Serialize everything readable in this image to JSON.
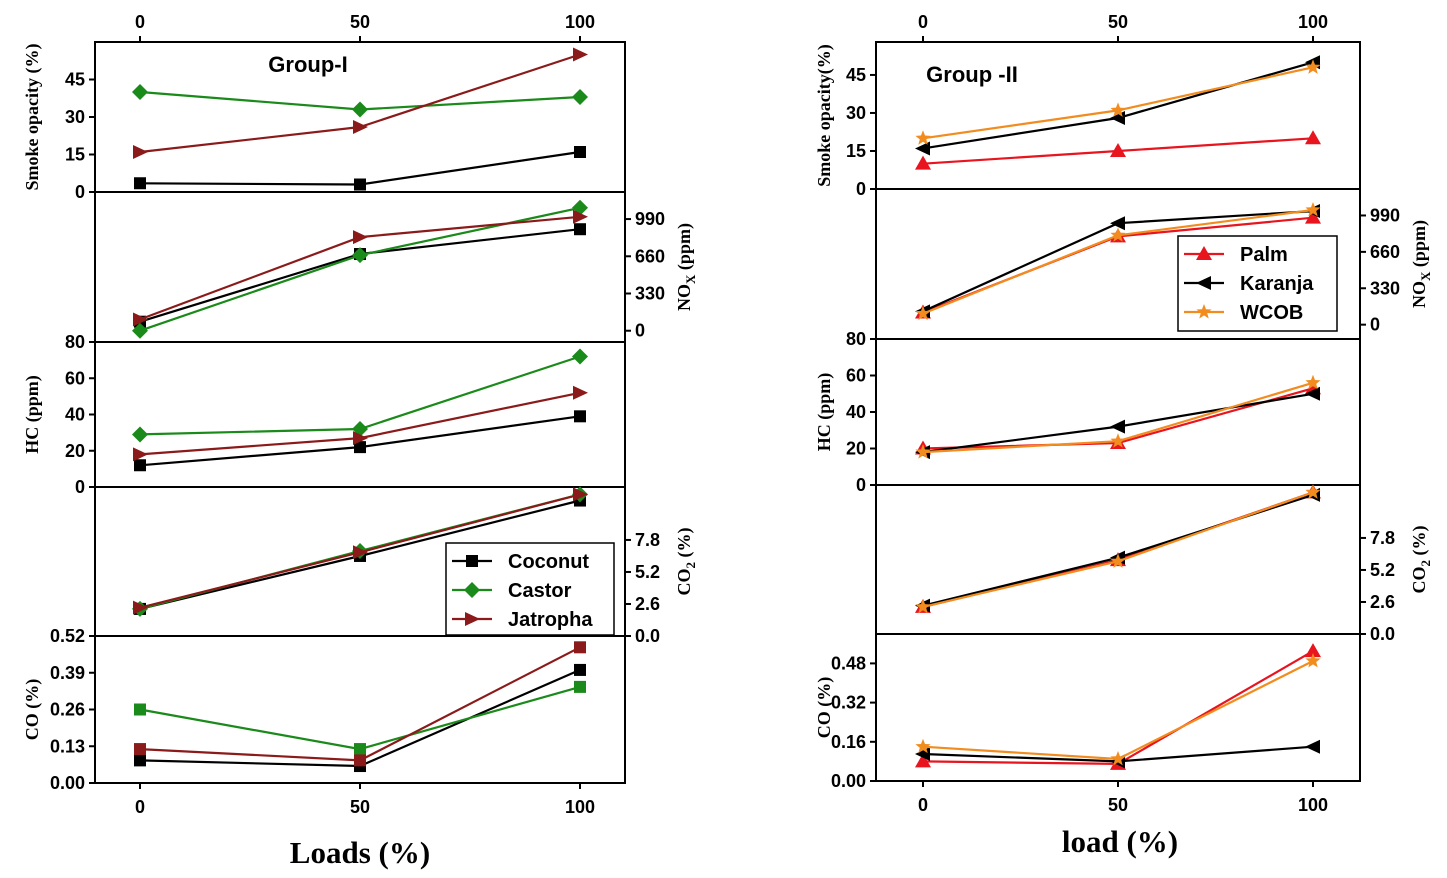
{
  "chart_data": [
    {
      "type": "line",
      "group_label": "Group-I",
      "xlabel": "Loads (%)",
      "x": [
        0,
        50,
        100
      ],
      "x_ticks": [
        "0",
        "50",
        "100"
      ],
      "colors": {
        "Coconut": "#000000",
        "Castor": "#1a8a1a",
        "Jatropha": "#8b1a1a"
      },
      "legend": [
        "Coconut",
        "Castor",
        "Jatropha"
      ],
      "panels": [
        {
          "key": "smoke",
          "ylabel": "Smoke opacity (%)",
          "ylim": [
            0,
            60
          ],
          "ticks": [
            "0",
            "15",
            "30",
            "45"
          ],
          "tick_side": "left",
          "series": [
            {
              "name": "Coconut",
              "marker": "square",
              "values": [
                3.5,
                3,
                16
              ]
            },
            {
              "name": "Castor",
              "marker": "diamond",
              "values": [
                40,
                33,
                38
              ]
            },
            {
              "name": "Jatropha",
              "marker": "tri-right",
              "values": [
                16,
                26,
                55
              ]
            }
          ]
        },
        {
          "key": "nox",
          "ylabel": "NO",
          "ylabel_sub": "X",
          "ylabel_tail": " (ppm)",
          "ylim": [
            -100,
            1230
          ],
          "ticks": [
            "0",
            "330",
            "660",
            "990"
          ],
          "tick_side": "right",
          "series": [
            {
              "name": "Coconut",
              "marker": "square",
              "values": [
                80,
                680,
                900
              ]
            },
            {
              "name": "Castor",
              "marker": "diamond",
              "values": [
                0,
                670,
                1090
              ]
            },
            {
              "name": "Jatropha",
              "marker": "tri-right",
              "values": [
                100,
                830,
                1010
              ]
            }
          ]
        },
        {
          "key": "hc",
          "ylabel": "HC (ppm)",
          "ylim": [
            0,
            80
          ],
          "ticks": [
            "0",
            "20",
            "40",
            "60",
            "80"
          ],
          "tick_side": "left",
          "series": [
            {
              "name": "Coconut",
              "marker": "square",
              "values": [
                12,
                22,
                39
              ]
            },
            {
              "name": "Castor",
              "marker": "diamond",
              "values": [
                29,
                32,
                72
              ]
            },
            {
              "name": "Jatropha",
              "marker": "tri-right",
              "values": [
                18,
                27,
                52
              ]
            }
          ]
        },
        {
          "key": "co2",
          "ylabel": "CO",
          "ylabel_sub": "2",
          "ylabel_tail": " (%)",
          "ylim": [
            0,
            12.1
          ],
          "ticks": [
            "0.0",
            "2.6",
            "5.2",
            "7.8"
          ],
          "tick_side": "right",
          "series": [
            {
              "name": "Coconut",
              "marker": "square",
              "values": [
                2.2,
                6.5,
                11.0
              ]
            },
            {
              "name": "Castor",
              "marker": "diamond",
              "values": [
                2.2,
                6.9,
                11.5
              ]
            },
            {
              "name": "Jatropha",
              "marker": "tri-right",
              "values": [
                2.3,
                6.8,
                11.5
              ]
            }
          ]
        },
        {
          "key": "co",
          "ylabel": "CO (%)",
          "ylim": [
            0,
            0.52
          ],
          "ticks": [
            "0.00",
            "0.13",
            "0.26",
            "0.39",
            "0.52"
          ],
          "tick_side": "left",
          "series": [
            {
              "name": "Coconut",
              "marker": "square",
              "values": [
                0.08,
                0.06,
                0.4
              ]
            },
            {
              "name": "Castor",
              "marker": "square",
              "values": [
                0.26,
                0.12,
                0.34
              ]
            },
            {
              "name": "Jatropha",
              "marker": "square",
              "values": [
                0.12,
                0.08,
                0.48
              ]
            }
          ]
        }
      ]
    },
    {
      "type": "line",
      "group_label": "Group -II",
      "xlabel": "load (%)",
      "x": [
        0,
        50,
        100
      ],
      "x_ticks": [
        "0",
        "50",
        "100"
      ],
      "colors": {
        "Palm": "#e8141e",
        "Karanja": "#000000",
        "WCOB": "#f28c1e"
      },
      "legend": [
        "Palm",
        "Karanja",
        "WCOB"
      ],
      "panels": [
        {
          "key": "smoke",
          "ylabel": "Smoke opacity(%)",
          "ylim": [
            0,
            58
          ],
          "ticks": [
            "0",
            "15",
            "30",
            "45"
          ],
          "tick_side": "left",
          "series": [
            {
              "name": "Palm",
              "marker": "tri-up",
              "values": [
                10,
                15,
                20
              ]
            },
            {
              "name": "Karanja",
              "marker": "tri-left",
              "values": [
                16,
                28,
                50
              ]
            },
            {
              "name": "WCOB",
              "marker": "star",
              "values": [
                20,
                31,
                48
              ]
            }
          ]
        },
        {
          "key": "nox",
          "ylabel": "NO",
          "ylabel_sub": "X",
          "ylabel_tail": " (ppm)",
          "ylim": [
            -130,
            1230
          ],
          "ticks": [
            "0",
            "330",
            "660",
            "990"
          ],
          "tick_side": "right",
          "series": [
            {
              "name": "Palm",
              "marker": "tri-up",
              "values": [
                110,
                800,
                970
              ]
            },
            {
              "name": "Karanja",
              "marker": "tri-left",
              "values": [
                120,
                920,
                1030
              ]
            },
            {
              "name": "WCOB",
              "marker": "star",
              "values": [
                100,
                810,
                1040
              ]
            }
          ]
        },
        {
          "key": "hc",
          "ylabel": "HC (ppm)",
          "ylim": [
            0,
            80
          ],
          "ticks": [
            "0",
            "20",
            "40",
            "60",
            "80"
          ],
          "tick_side": "left",
          "series": [
            {
              "name": "Palm",
              "marker": "tri-up",
              "values": [
                20,
                23,
                53
              ]
            },
            {
              "name": "Karanja",
              "marker": "tri-left",
              "values": [
                18,
                32,
                50
              ]
            },
            {
              "name": "WCOB",
              "marker": "star",
              "values": [
                18,
                24,
                56
              ]
            }
          ]
        },
        {
          "key": "co2",
          "ylabel": "CO",
          "ylabel_sub": "2",
          "ylabel_tail": " (%)",
          "ylim": [
            0,
            12.1
          ],
          "ticks": [
            "0.0",
            "2.6",
            "5.2",
            "7.8"
          ],
          "tick_side": "right",
          "series": [
            {
              "name": "Palm",
              "marker": "tri-up",
              "values": [
                2.2,
                6.0,
                11.5
              ]
            },
            {
              "name": "Karanja",
              "marker": "tri-left",
              "values": [
                2.3,
                6.2,
                11.3
              ]
            },
            {
              "name": "WCOB",
              "marker": "star",
              "values": [
                2.2,
                5.9,
                11.5
              ]
            }
          ]
        },
        {
          "key": "co",
          "ylabel": "CO (%)",
          "ylim": [
            0,
            0.6
          ],
          "ticks": [
            "0.00",
            "0.16",
            "0.32",
            "0.48"
          ],
          "tick_side": "left",
          "series": [
            {
              "name": "Palm",
              "marker": "tri-up",
              "values": [
                0.08,
                0.07,
                0.53
              ]
            },
            {
              "name": "Karanja",
              "marker": "tri-left",
              "values": [
                0.11,
                0.08,
                0.14
              ]
            },
            {
              "name": "WCOB",
              "marker": "star",
              "values": [
                0.14,
                0.09,
                0.49
              ]
            }
          ]
        }
      ]
    }
  ]
}
